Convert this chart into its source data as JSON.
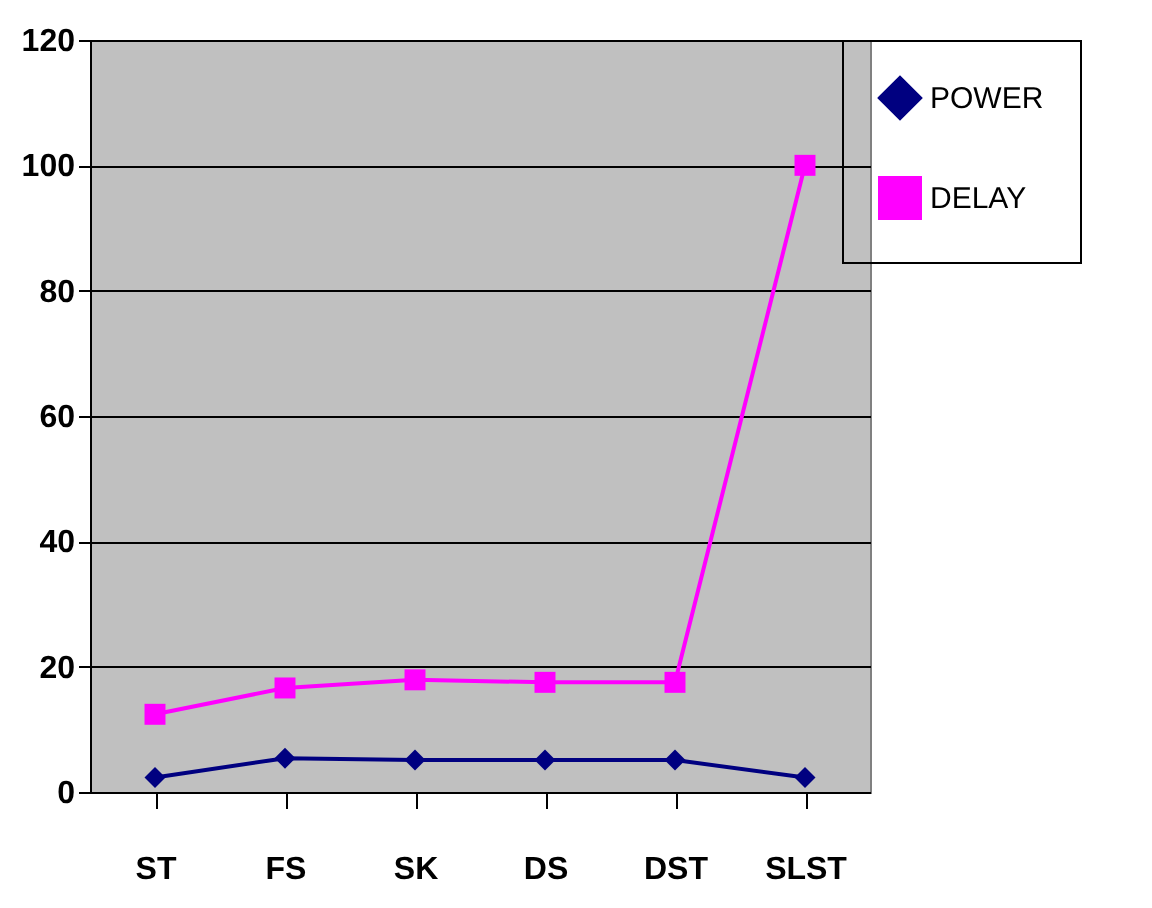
{
  "chart_data": {
    "type": "line",
    "categories": [
      "ST",
      "FS",
      "SK",
      "DS",
      "DST",
      "SLST"
    ],
    "series": [
      {
        "name": "POWER",
        "color": "#000080",
        "marker": "diamond",
        "values": [
          2.3,
          5.4,
          5.1,
          5.1,
          5.1,
          2.3
        ]
      },
      {
        "name": "DELAY",
        "color": "#ff00ff",
        "marker": "square",
        "values": [
          12.4,
          16.6,
          17.9,
          17.5,
          17.5,
          100
        ]
      }
    ],
    "ylim": [
      0,
      120
    ],
    "yticks": [
      0,
      20,
      40,
      60,
      80,
      100,
      120
    ],
    "grid": "y",
    "legend": "right"
  }
}
